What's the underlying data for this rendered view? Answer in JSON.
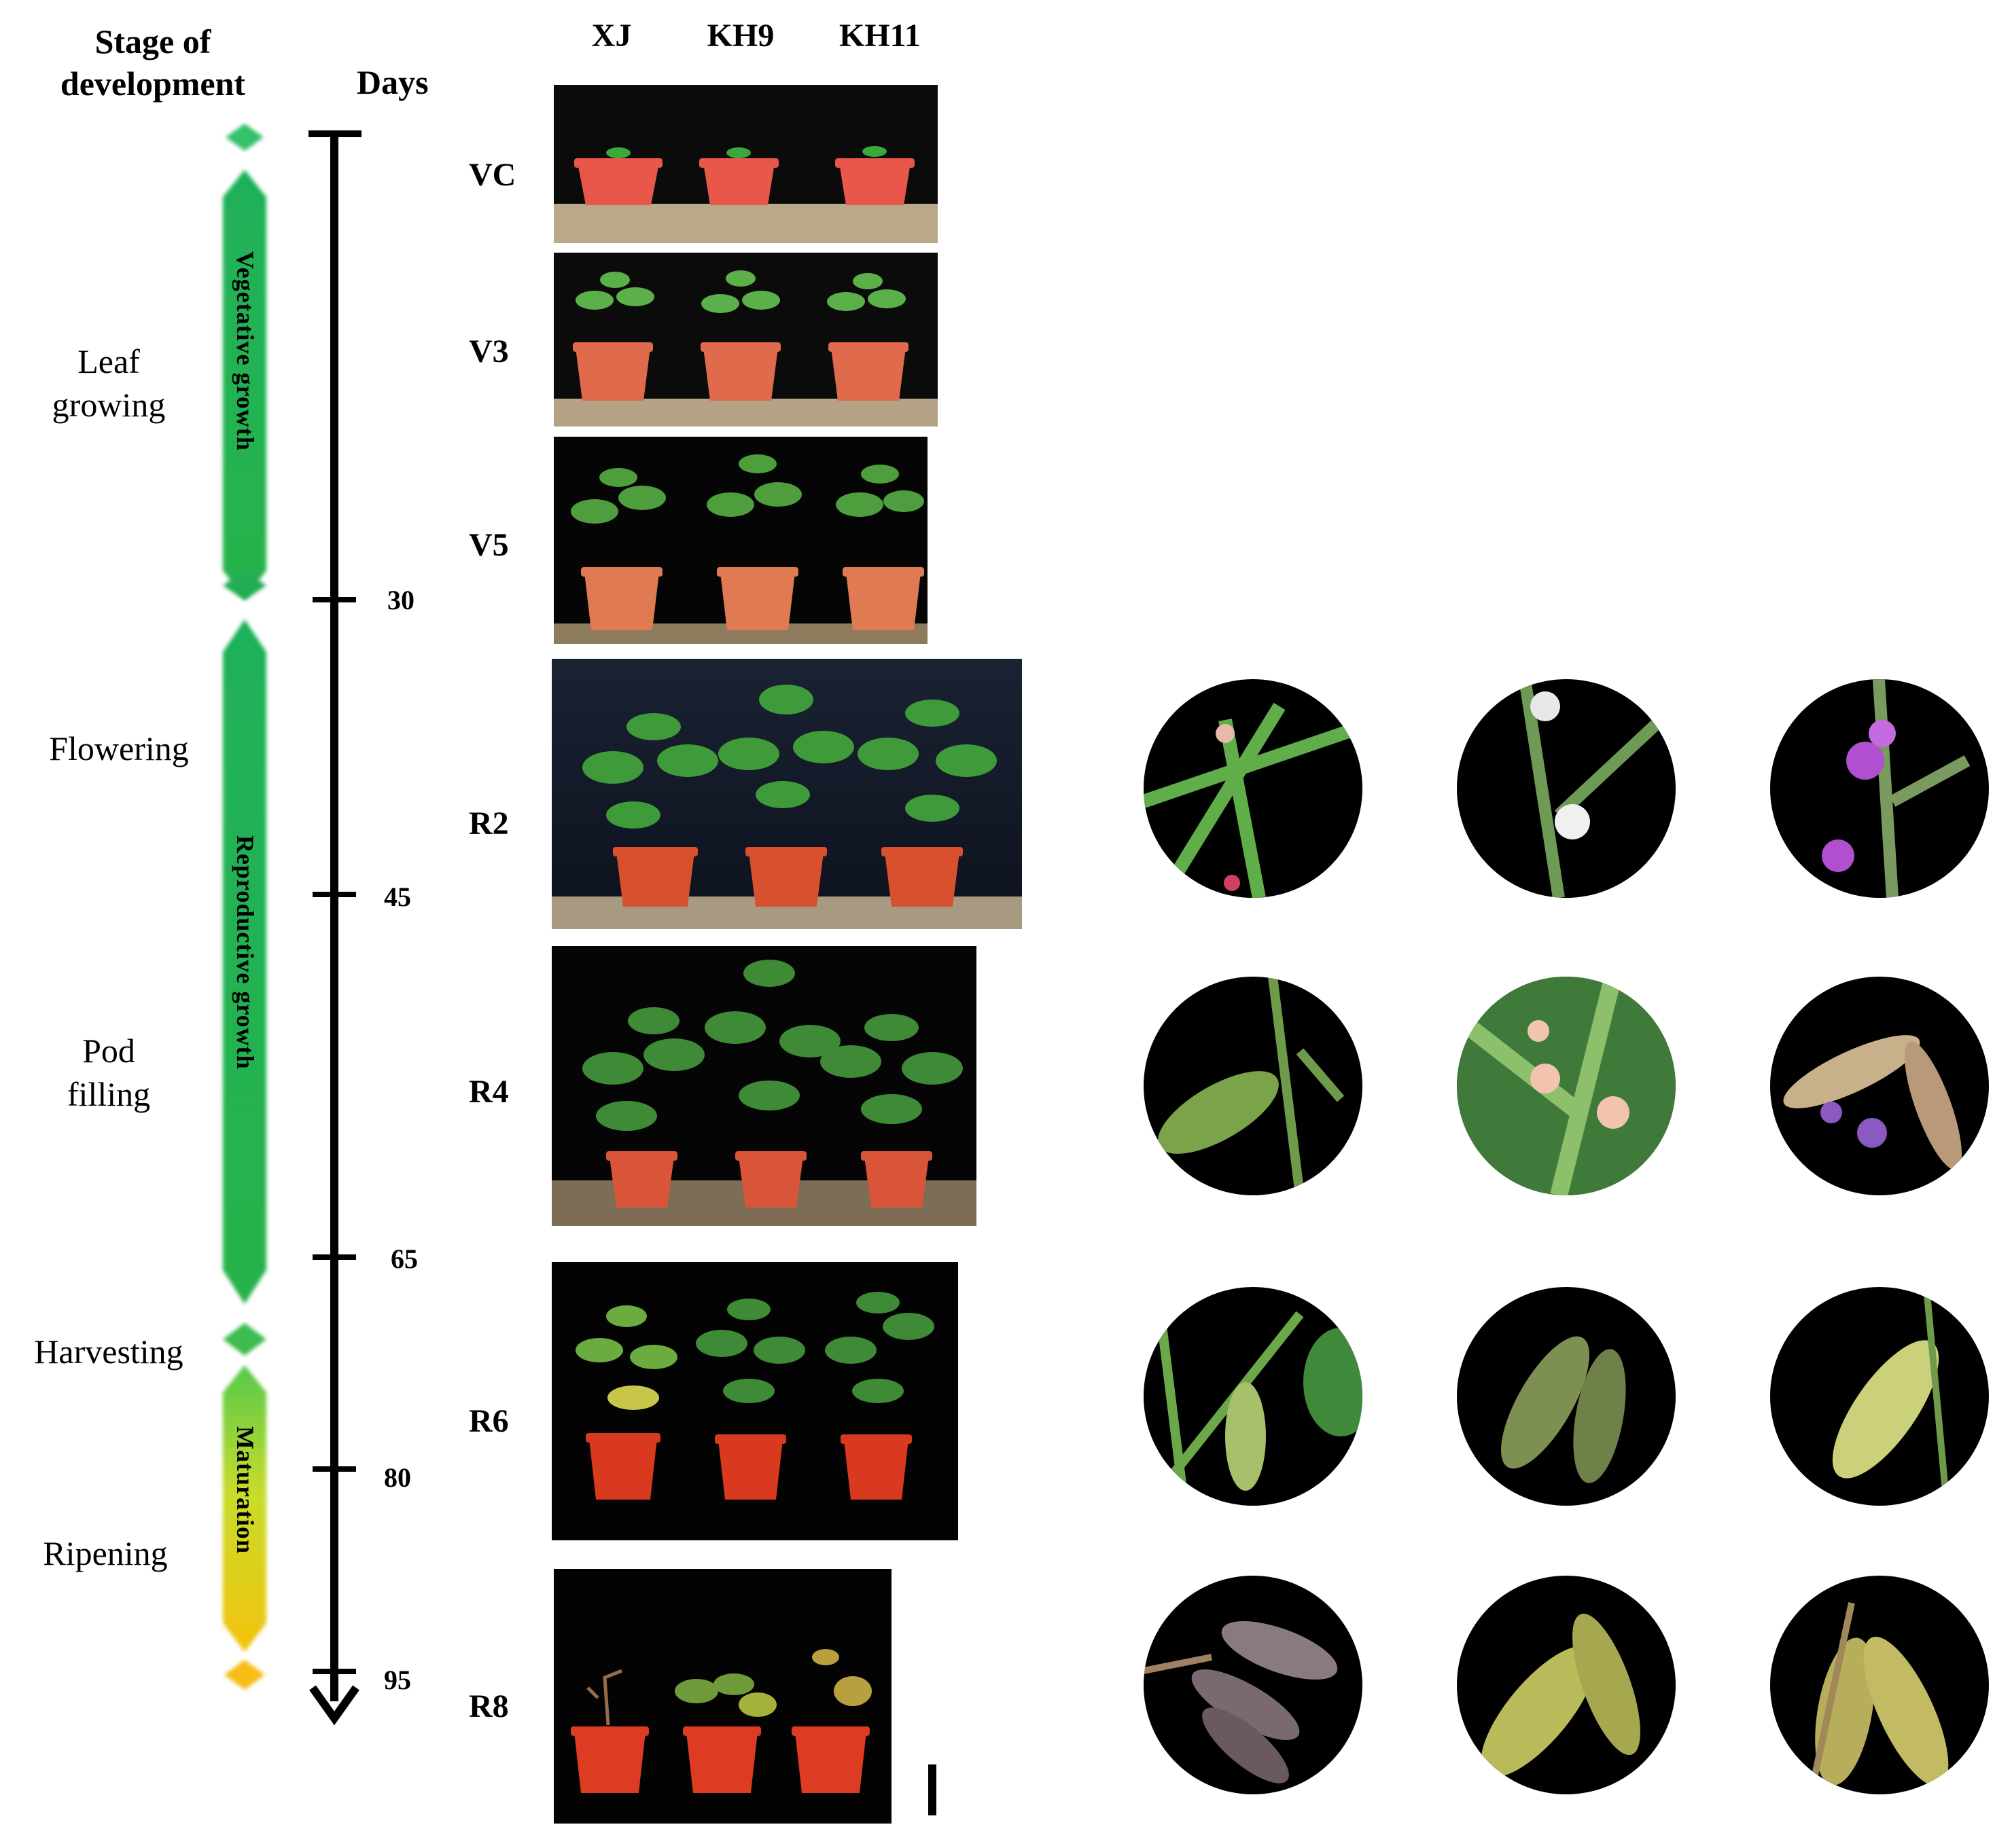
{
  "header": {
    "stage_title_line1": "Stage of",
    "stage_title_line2": "development",
    "days_title": "Days",
    "cultivars": [
      "XJ",
      "KH9",
      "KH11"
    ]
  },
  "stages": {
    "leaf": [
      "Leaf",
      "growing"
    ],
    "flowering": "Flowering",
    "pod": [
      "Pod",
      "filling"
    ],
    "harvesting": "Harvesting",
    "ripening": "Ripening"
  },
  "growth_phases": {
    "vegetative": "Vegetative growth",
    "reproductive": "Reproductive growth",
    "maturation": "Maturation"
  },
  "day_ticks": [
    "30",
    "45",
    "65",
    "80",
    "95"
  ],
  "growth_stage_codes": [
    "VC",
    "V3",
    "V5",
    "R2",
    "R4",
    "R6",
    "R8"
  ],
  "colors": {
    "green": "#1fae4a",
    "green_light": "#7fd46f",
    "yellow": "#f2c40c",
    "pot": "#e55a3c",
    "night": "#0a0a0a",
    "night_blue": "#1b2233"
  }
}
